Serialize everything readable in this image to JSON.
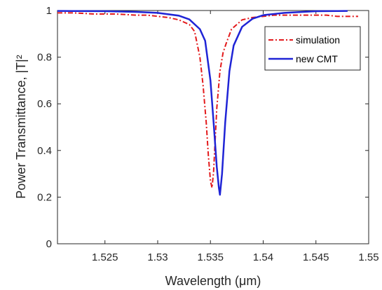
{
  "chart_data": {
    "type": "line",
    "xlabel": "Wavelength (μm)",
    "ylabel": "Power Transmittance, |T|²",
    "xlim": [
      1.5205,
      1.55
    ],
    "ylim": [
      0,
      1
    ],
    "xticks": [
      1.525,
      1.53,
      1.535,
      1.54,
      1.545,
      1.55
    ],
    "xtick_labels": [
      "1.525",
      "1.53",
      "1.535",
      "1.54",
      "1.545",
      "1.55"
    ],
    "yticks": [
      0,
      0.2,
      0.4,
      0.6,
      0.8,
      1
    ],
    "ytick_labels": [
      "0",
      "0.2",
      "0.4",
      "0.6",
      "0.8",
      "1"
    ],
    "grid": false,
    "legend_position": "top-right",
    "series": [
      {
        "name": "simulation",
        "color": "#e31a1c",
        "style": "dash-dot",
        "x": [
          1.5205,
          1.522,
          1.524,
          1.526,
          1.528,
          1.529,
          1.53,
          1.531,
          1.532,
          1.533,
          1.5335,
          1.534,
          1.5343,
          1.5346,
          1.5348,
          1.535,
          1.53515,
          1.5353,
          1.5356,
          1.5359,
          1.5362,
          1.5365,
          1.537,
          1.5375,
          1.538,
          1.539,
          1.54,
          1.541,
          1.542,
          1.543,
          1.544,
          1.545,
          1.546,
          1.547,
          1.548,
          1.549
        ],
        "y": [
          0.99,
          0.99,
          0.985,
          0.985,
          0.98,
          0.98,
          0.975,
          0.97,
          0.96,
          0.94,
          0.91,
          0.8,
          0.68,
          0.52,
          0.38,
          0.27,
          0.24,
          0.31,
          0.58,
          0.74,
          0.82,
          0.86,
          0.92,
          0.94,
          0.96,
          0.97,
          0.975,
          0.98,
          0.98,
          0.98,
          0.98,
          0.98,
          0.98,
          0.975,
          0.975,
          0.975
        ]
      },
      {
        "name": "new CMT",
        "color": "#1f24d6",
        "style": "solid",
        "x": [
          1.5205,
          1.525,
          1.528,
          1.53,
          1.532,
          1.533,
          1.534,
          1.5345,
          1.535,
          1.5353,
          1.5356,
          1.5358,
          1.5359,
          1.5361,
          1.5364,
          1.5368,
          1.5372,
          1.538,
          1.539,
          1.54,
          1.542,
          1.545,
          1.548
        ],
        "y": [
          0.998,
          0.997,
          0.994,
          0.99,
          0.978,
          0.962,
          0.92,
          0.87,
          0.7,
          0.52,
          0.33,
          0.24,
          0.21,
          0.3,
          0.52,
          0.74,
          0.85,
          0.93,
          0.965,
          0.98,
          0.99,
          0.997,
          0.998
        ]
      }
    ]
  }
}
